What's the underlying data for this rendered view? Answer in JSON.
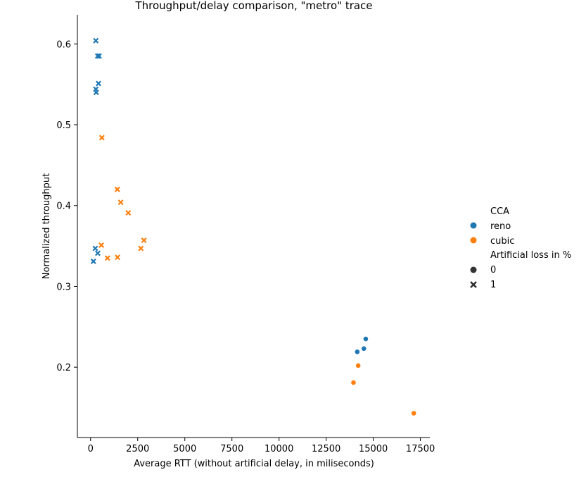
{
  "chart_data": {
    "type": "scatter",
    "title": "Throughput/delay comparison, \"metro\" trace",
    "xlabel": "Average RTT (without artificial delay, in miliseconds)",
    "ylabel": "Normalized throughput",
    "xlim": [
      -700,
      18000
    ],
    "ylim": [
      0.113,
      0.636
    ],
    "xticks": [
      0,
      2500,
      5000,
      7500,
      10000,
      12500,
      15000,
      17500
    ],
    "xtick_labels": [
      "0",
      "2500",
      "5000",
      "7500",
      "10000",
      "12500",
      "15000",
      "17500"
    ],
    "yticks": [
      0.2,
      0.3,
      0.4,
      0.5,
      0.6
    ],
    "ytick_labels": [
      "0.2",
      "0.3",
      "0.4",
      "0.5",
      "0.6"
    ],
    "grid": false,
    "legend": {
      "placement": "right",
      "hue_title": "CCA",
      "style_title": "Artificial loss in %",
      "hue_entries": [
        {
          "label": "reno",
          "color": "#1f77b4"
        },
        {
          "label": "cubic",
          "color": "#ff7f0e"
        }
      ],
      "style_entries": [
        {
          "label": "0",
          "marker": "circle"
        },
        {
          "label": "1",
          "marker": "x"
        }
      ]
    },
    "series": [
      {
        "cca": "reno",
        "loss": "0",
        "color": "#1f77b4",
        "marker": "circle",
        "points": [
          [
            14600,
            0.235
          ],
          [
            14500,
            0.223
          ],
          [
            14150,
            0.219
          ]
        ]
      },
      {
        "cca": "cubic",
        "loss": "0",
        "color": "#ff7f0e",
        "marker": "circle",
        "points": [
          [
            14200,
            0.202
          ],
          [
            13950,
            0.181
          ],
          [
            17150,
            0.143
          ]
        ]
      },
      {
        "cca": "reno",
        "loss": "1",
        "color": "#1f77b4",
        "marker": "x",
        "points": [
          [
            280,
            0.604
          ],
          [
            380,
            0.585
          ],
          [
            450,
            0.585
          ],
          [
            420,
            0.551
          ],
          [
            280,
            0.544
          ],
          [
            300,
            0.54
          ],
          [
            250,
            0.347
          ],
          [
            380,
            0.341
          ],
          [
            150,
            0.331
          ]
        ]
      },
      {
        "cca": "cubic",
        "loss": "1",
        "color": "#ff7f0e",
        "marker": "x",
        "points": [
          [
            600,
            0.484
          ],
          [
            1420,
            0.42
          ],
          [
            1600,
            0.404
          ],
          [
            2000,
            0.391
          ],
          [
            2830,
            0.357
          ],
          [
            570,
            0.351
          ],
          [
            2670,
            0.347
          ],
          [
            900,
            0.335
          ],
          [
            1430,
            0.336
          ]
        ]
      }
    ]
  }
}
